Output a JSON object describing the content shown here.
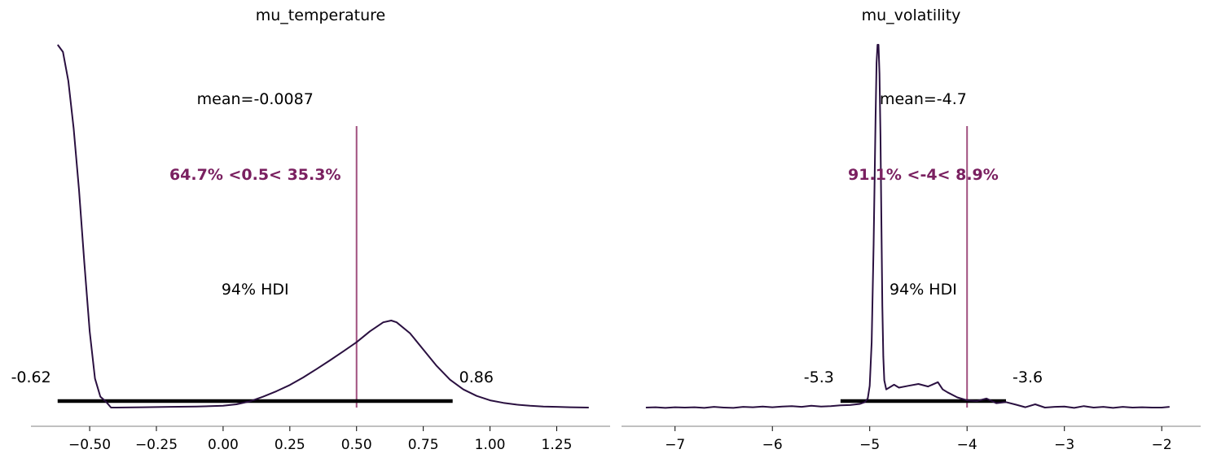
{
  "colors": {
    "density": "#2a1040",
    "reference": "#7a2060",
    "reference_line": "#a0507f",
    "hdi": "#000000",
    "axis": "#808080",
    "background": "#ffffff"
  },
  "chart_data": [
    {
      "type": "line",
      "title": "mu_temperature",
      "xlabel": "",
      "ylabel": "",
      "xlim": [
        -0.72,
        1.45
      ],
      "ylim": [
        -0.07,
        1.0
      ],
      "grid": false,
      "x_ticks": [
        -0.5,
        -0.25,
        0.0,
        0.25,
        0.5,
        0.75,
        1.0,
        1.25
      ],
      "x_tick_labels": [
        "−0.50",
        "−0.25",
        "0.00",
        "0.25",
        "0.50",
        "0.75",
        "1.00",
        "1.25"
      ],
      "mean_label": "mean=-0.0087",
      "ref_value": 0.5,
      "ref_label": "64.7% <0.5< 35.3%",
      "hdi_label": "94% HDI",
      "hdi": [
        -0.62,
        0.86
      ],
      "hdi_low_label": "-0.62",
      "hdi_high_label": "0.86",
      "series": [
        {
          "x": [
            -0.62,
            -0.6,
            -0.58,
            -0.56,
            -0.54,
            -0.52,
            -0.5,
            -0.48,
            -0.46,
            -0.44,
            -0.42,
            -0.4,
            -0.3,
            -0.2,
            -0.1,
            0.0,
            0.05,
            0.1,
            0.15,
            0.2,
            0.25,
            0.3,
            0.35,
            0.4,
            0.45,
            0.5,
            0.55,
            0.6,
            0.63,
            0.65,
            0.7,
            0.75,
            0.8,
            0.85,
            0.9,
            0.95,
            1.0,
            1.05,
            1.1,
            1.15,
            1.2,
            1.25,
            1.3,
            1.37
          ],
          "y": [
            1.0,
            0.98,
            0.9,
            0.77,
            0.6,
            0.4,
            0.21,
            0.08,
            0.03,
            0.017,
            0.0,
            0.0,
            0.001,
            0.002,
            0.003,
            0.005,
            0.009,
            0.017,
            0.03,
            0.045,
            0.062,
            0.083,
            0.106,
            0.13,
            0.155,
            0.18,
            0.21,
            0.235,
            0.24,
            0.235,
            0.205,
            0.16,
            0.115,
            0.077,
            0.05,
            0.032,
            0.02,
            0.013,
            0.008,
            0.005,
            0.003,
            0.002,
            0.001,
            0.0
          ]
        }
      ]
    },
    {
      "type": "line",
      "title": "mu_volatility",
      "xlabel": "",
      "ylabel": "",
      "xlim": [
        -7.55,
        -1.6
      ],
      "ylim": [
        -0.07,
        1.0
      ],
      "grid": false,
      "x_ticks": [
        -7,
        -6,
        -5,
        -4,
        -3,
        -2
      ],
      "x_tick_labels": [
        "−7",
        "−6",
        "−5",
        "−4",
        "−3",
        "−2"
      ],
      "mean_label": "mean=-4.7",
      "ref_value": -4,
      "ref_label": "91.1% <-4< 8.9%",
      "hdi_label": "94% HDI",
      "hdi": [
        -5.3,
        -3.6
      ],
      "hdi_low_label": "-5.3",
      "hdi_high_label": "-3.6",
      "series": [
        {
          "x": [
            -7.3,
            -7.2,
            -7.1,
            -7.0,
            -6.9,
            -6.8,
            -6.7,
            -6.6,
            -6.5,
            -6.4,
            -6.3,
            -6.2,
            -6.1,
            -6.0,
            -5.9,
            -5.8,
            -5.7,
            -5.6,
            -5.5,
            -5.4,
            -5.3,
            -5.2,
            -5.1,
            -5.05,
            -5.02,
            -5.0,
            -4.98,
            -4.96,
            -4.94,
            -4.93,
            -4.92,
            -4.91,
            -4.9,
            -4.89,
            -4.88,
            -4.87,
            -4.86,
            -4.85,
            -4.83,
            -4.8,
            -4.75,
            -4.7,
            -4.6,
            -4.5,
            -4.4,
            -4.3,
            -4.25,
            -4.2,
            -4.1,
            -4.0,
            -3.9,
            -3.8,
            -3.7,
            -3.6,
            -3.5,
            -3.4,
            -3.3,
            -3.2,
            -3.1,
            -3.0,
            -2.9,
            -2.8,
            -2.7,
            -2.6,
            -2.5,
            -2.4,
            -2.3,
            -2.2,
            -2.1,
            -2.0,
            -1.92
          ],
          "y": [
            0.0,
            0.001,
            -0.001,
            0.001,
            0.0,
            0.001,
            -0.001,
            0.002,
            0.0,
            -0.001,
            0.002,
            0.001,
            0.003,
            0.001,
            0.003,
            0.004,
            0.002,
            0.005,
            0.003,
            0.004,
            0.006,
            0.007,
            0.01,
            0.015,
            0.025,
            0.06,
            0.18,
            0.45,
            0.8,
            0.95,
            1.0,
            1.0,
            0.92,
            0.75,
            0.5,
            0.28,
            0.14,
            0.075,
            0.05,
            0.055,
            0.063,
            0.055,
            0.06,
            0.065,
            0.058,
            0.07,
            0.05,
            0.042,
            0.028,
            0.02,
            0.018,
            0.025,
            0.012,
            0.015,
            0.008,
            0.001,
            0.009,
            0.0,
            0.002,
            0.003,
            -0.001,
            0.004,
            0.0,
            0.002,
            -0.001,
            0.002,
            0.0,
            0.001,
            0.0,
            0.0,
            0.002
          ]
        }
      ]
    }
  ]
}
